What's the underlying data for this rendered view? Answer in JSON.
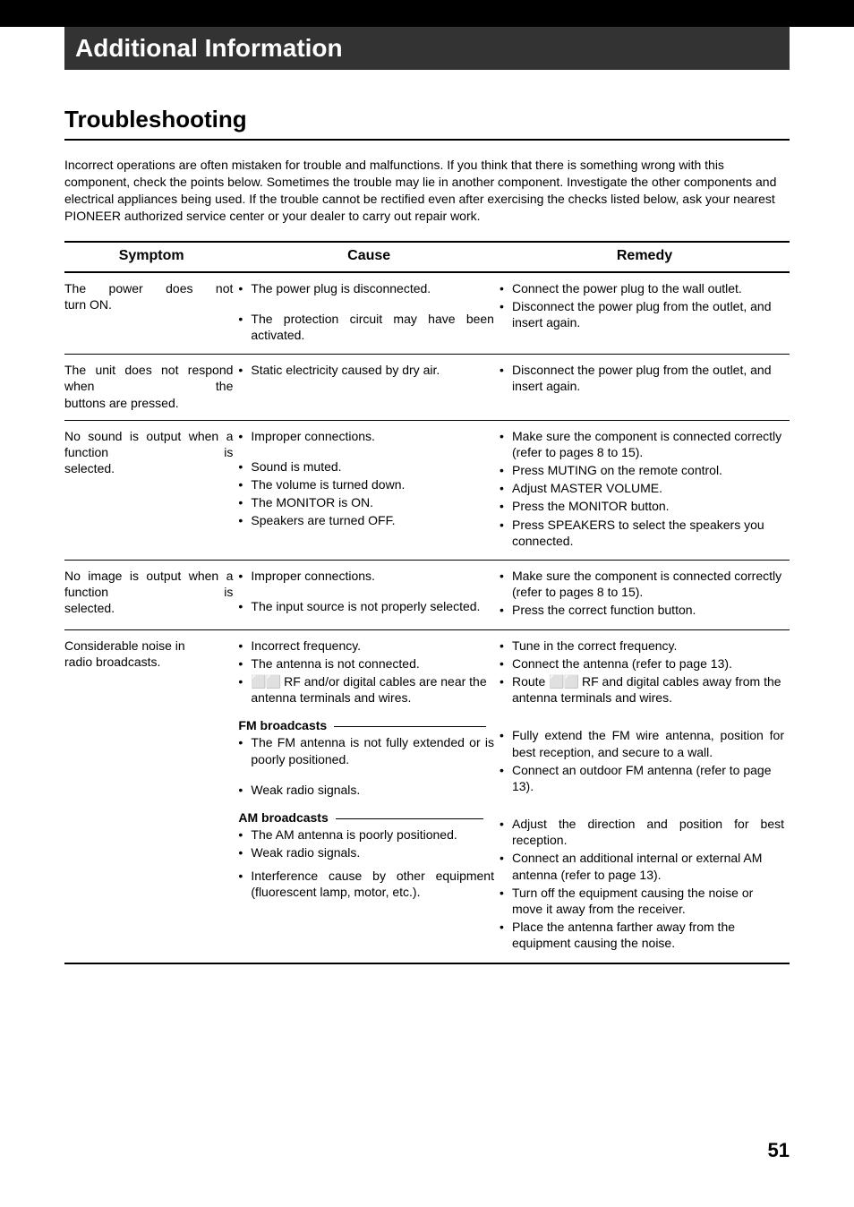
{
  "header": {
    "section_title": "Additional Information"
  },
  "page": {
    "title": "Troubleshooting",
    "intro": "Incorrect operations are often mistaken for trouble and malfunctions. If you think that there is something wrong with this component, check the points below. Sometimes the trouble may lie in another component. Investigate the other components and electrical appliances being used. If the trouble cannot be rectified even after exercising the checks listed below, ask your nearest PIONEER authorized service center or your dealer to carry out repair work.",
    "page_number": "51"
  },
  "table": {
    "headers": {
      "symptom": "Symptom",
      "cause": "Cause",
      "remedy": "Remedy"
    },
    "rows": [
      {
        "symptom": "The power does not turn ON.",
        "causes": [
          "The power plug is disconnected.",
          "The protection circuit may have been activated."
        ],
        "remedies": [
          "Connect the power plug to the wall outlet.",
          "Disconnect the power plug from the outlet, and insert again."
        ]
      },
      {
        "symptom": "The unit does not respond when the buttons are pressed.",
        "causes": [
          "Static electricity caused by dry air."
        ],
        "remedies": [
          "Disconnect the power plug from the outlet, and insert again."
        ]
      },
      {
        "symptom": "No sound is output when a function is selected.",
        "causes": [
          "Improper connections.",
          "Sound is muted.",
          "The volume is turned down.",
          "The MONITOR is ON.",
          "Speakers are turned OFF."
        ],
        "remedies": [
          "Make sure the component is connected correctly (refer to pages 8 to 15).",
          "Press MUTING on the remote control.",
          "Adjust MASTER VOLUME.",
          "Press the  MONITOR button.",
          "Press SPEAKERS to select the speakers you connected."
        ]
      },
      {
        "symptom": "No image is output when a function is selected.",
        "causes": [
          "Improper connections.",
          "The input source is not properly selected."
        ],
        "remedies": [
          "Make sure the component is connected correctly (refer to pages 8 to 15).",
          "Press the correct function button."
        ]
      },
      {
        "symptom": "Considerable noise in radio broadcasts.",
        "causes_main": [
          "Incorrect frequency.",
          "The antenna is not connected.",
          "__DOLBY__ RF and/or digital cables are near the antenna terminals and wires."
        ],
        "remedies_main": [
          "Tune in the correct frequency.",
          "Connect the antenna (refer to page  13).",
          "Route __DOLBY__ RF and digital cables away from the antenna terminals and wires."
        ],
        "fm_label": "FM broadcasts",
        "causes_fm": [
          "The FM antenna is not fully extended or is poorly positioned.",
          "Weak radio signals."
        ],
        "remedies_fm": [
          "Fully extend the FM wire antenna, position for best reception, and secure to a wall.",
          "Connect an outdoor FM antenna (refer to page 13)."
        ],
        "am_label": "AM broadcasts",
        "causes_am": [
          "The AM antenna is poorly positioned.",
          "Weak radio signals.",
          "Interference cause by other equipment (fluorescent lamp, motor, etc.)."
        ],
        "remedies_am": [
          "Adjust the direction and position for best reception.",
          "Connect an additional internal or external AM antenna (refer to page  13).",
          "Turn off the equipment causing the noise or move it away from the receiver.",
          "Place the antenna farther away from the equipment causing the noise."
        ]
      }
    ]
  }
}
